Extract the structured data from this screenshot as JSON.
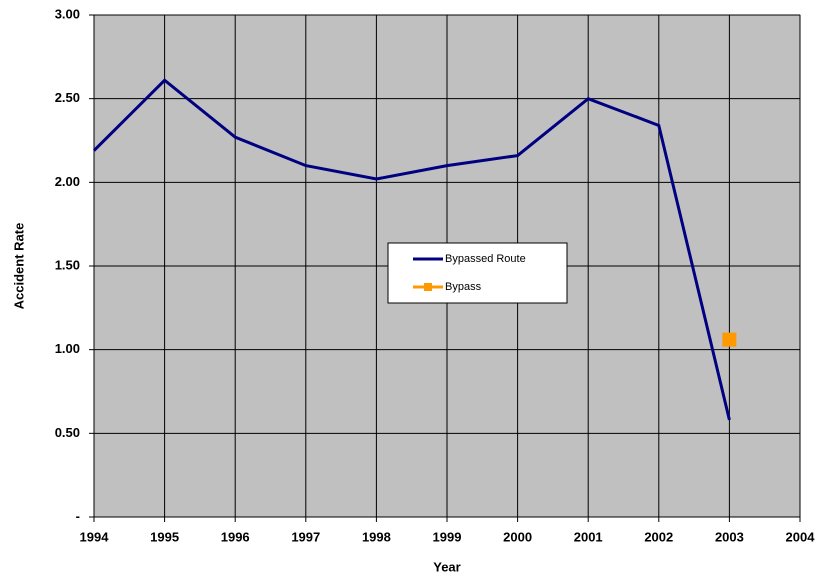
{
  "chart_data": {
    "type": "line",
    "xlabel": "Year",
    "ylabel": "Accident Rate",
    "x": [
      1994,
      1995,
      1996,
      1997,
      1998,
      1999,
      2000,
      2001,
      2002,
      2003
    ],
    "series": [
      {
        "name": "Bypassed Route",
        "color": "#000080",
        "values": [
          2.19,
          2.61,
          2.27,
          2.1,
          2.02,
          2.1,
          2.16,
          2.5,
          2.34,
          0.58
        ]
      },
      {
        "name": "Bypass",
        "color": "#FF9900",
        "marker": "square",
        "values": [
          null,
          null,
          null,
          null,
          null,
          null,
          null,
          null,
          null,
          1.06
        ]
      }
    ],
    "xlim": [
      1994,
      2004
    ],
    "xticks": [
      1994,
      1995,
      1996,
      1997,
      1998,
      1999,
      2000,
      2001,
      2002,
      2003,
      2004
    ],
    "ylim": [
      0,
      3
    ],
    "yticks": [
      {
        "value": 0,
        "label": "-"
      },
      {
        "value": 0.5,
        "label": "0.50"
      },
      {
        "value": 1,
        "label": "1.00"
      },
      {
        "value": 1.5,
        "label": "1.50"
      },
      {
        "value": 2,
        "label": "2.00"
      },
      {
        "value": 2.5,
        "label": "2.50"
      },
      {
        "value": 3,
        "label": "3.00"
      }
    ],
    "grid": true,
    "plot_background": "#C0C0C0"
  }
}
